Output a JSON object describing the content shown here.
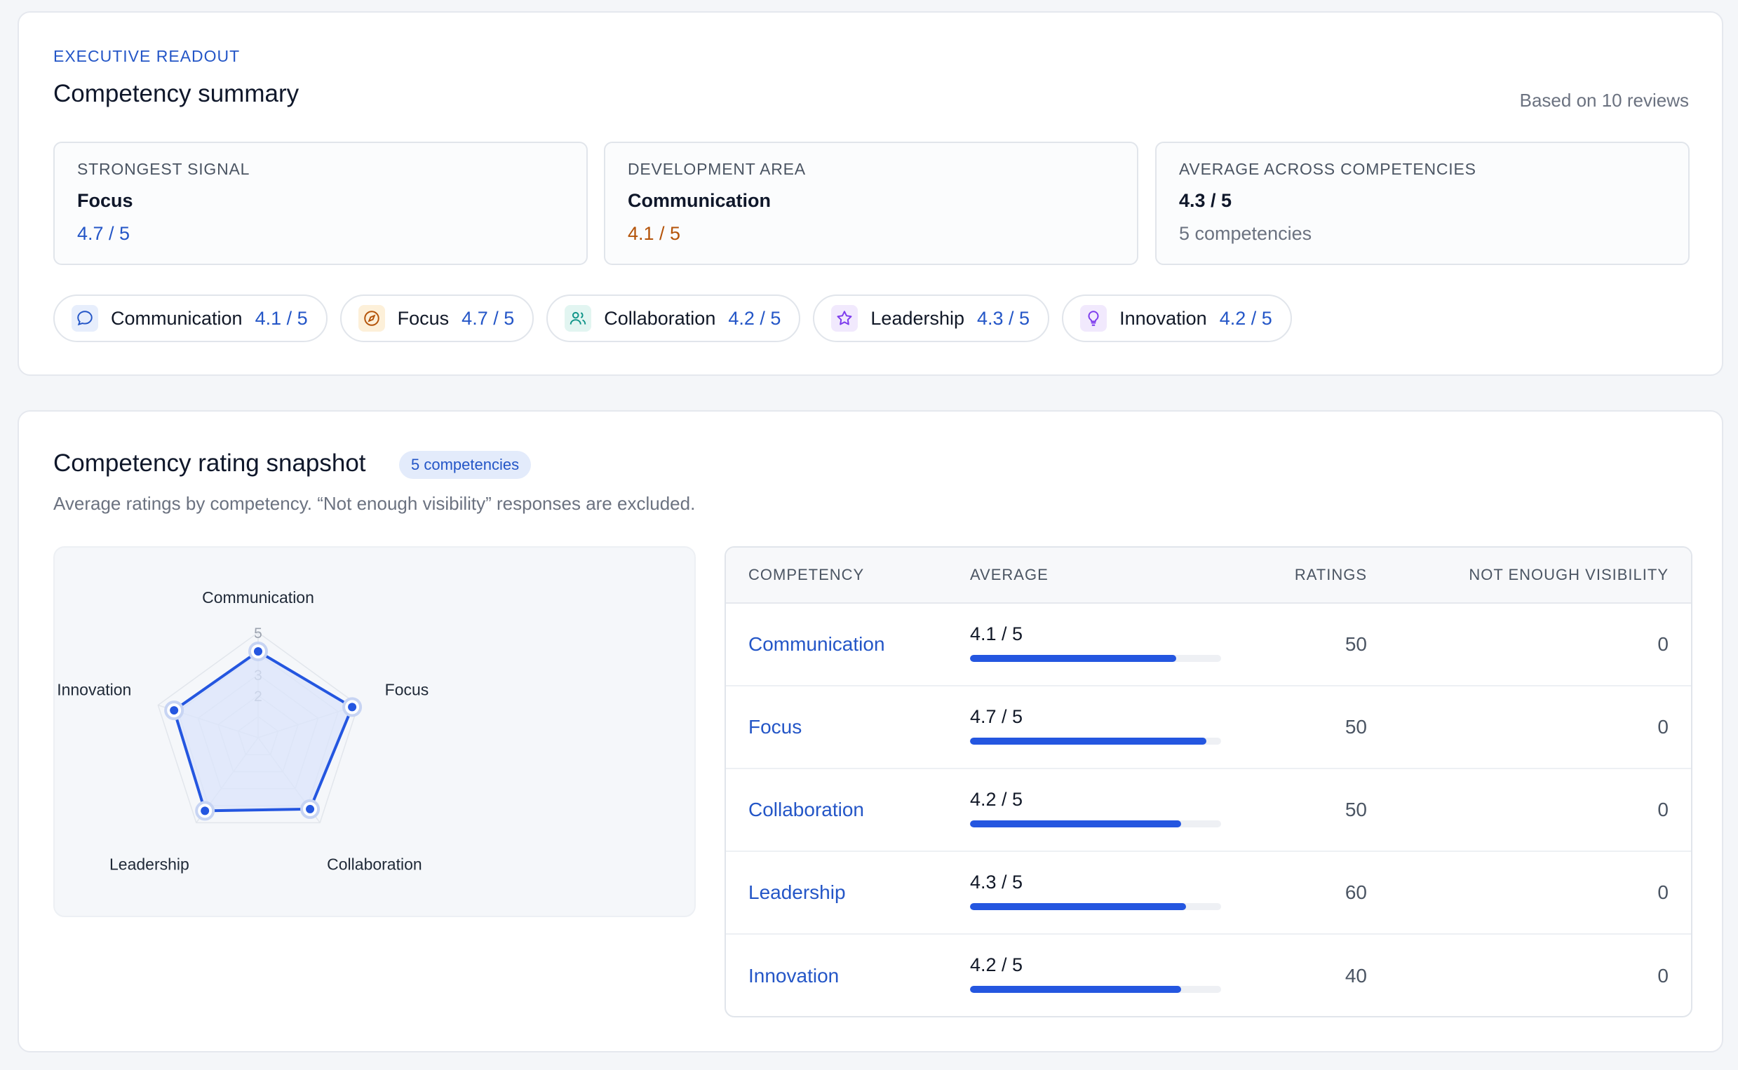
{
  "summary": {
    "eyebrow": "EXECUTIVE READOUT",
    "title": "Competency summary",
    "based_on": "Based on 10 reviews",
    "stats": [
      {
        "label": "STRONGEST SIGNAL",
        "value": "Focus",
        "sub": "4.7 / 5"
      },
      {
        "label": "DEVELOPMENT AREA",
        "value": "Communication",
        "sub": "4.1 / 5"
      },
      {
        "label": "AVERAGE ACROSS COMPETENCIES",
        "value": "4.3 / 5",
        "sub": "5 competencies"
      }
    ],
    "chips": [
      {
        "name": "Communication",
        "score": "4.1 / 5",
        "icon": "chat-bubble-icon",
        "color": "#2456c7"
      },
      {
        "name": "Focus",
        "score": "4.7 / 5",
        "icon": "compass-icon",
        "color": "#b45309"
      },
      {
        "name": "Collaboration",
        "score": "4.2 / 5",
        "icon": "users-icon",
        "color": "#0f9488"
      },
      {
        "name": "Leadership",
        "score": "4.3 / 5",
        "icon": "star-icon",
        "color": "#7c3aed"
      },
      {
        "name": "Innovation",
        "score": "4.2 / 5",
        "icon": "lightbulb-icon",
        "color": "#7c3aed"
      }
    ]
  },
  "snapshot": {
    "title": "Competency rating snapshot",
    "badge": "5 competencies",
    "description": "Average ratings by competency. “Not enough visibility” responses are excluded.",
    "table": {
      "headers": [
        "COMPETENCY",
        "AVERAGE",
        "RATINGS",
        "NOT ENOUGH VISIBILITY"
      ],
      "rows": [
        {
          "name": "Communication",
          "average": "4.1 / 5",
          "score": 4.1,
          "ratings": "50",
          "nev": "0"
        },
        {
          "name": "Focus",
          "average": "4.7 / 5",
          "score": 4.7,
          "ratings": "50",
          "nev": "0"
        },
        {
          "name": "Collaboration",
          "average": "4.2 / 5",
          "score": 4.2,
          "ratings": "50",
          "nev": "0"
        },
        {
          "name": "Leadership",
          "average": "4.3 / 5",
          "score": 4.3,
          "ratings": "60",
          "nev": "0"
        },
        {
          "name": "Innovation",
          "average": "4.2 / 5",
          "score": 4.2,
          "ratings": "40",
          "nev": "0"
        }
      ]
    }
  },
  "chart_data": {
    "type": "radar",
    "categories": [
      "Communication",
      "Focus",
      "Collaboration",
      "Leadership",
      "Innovation"
    ],
    "values": [
      4.1,
      4.7,
      4.2,
      4.3,
      4.2
    ],
    "ticks": [
      "2",
      "3",
      "5"
    ],
    "rlim": [
      0,
      5
    ],
    "colors": {
      "line": "#2456e0",
      "fill": "#dbe4fb"
    }
  }
}
